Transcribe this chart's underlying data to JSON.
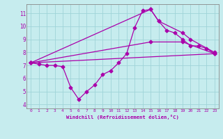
{
  "xlabel": "Windchill (Refroidissement éolien,°C)",
  "ylabel": "",
  "xlim": [
    -0.5,
    23.5
  ],
  "ylim": [
    3.7,
    11.7
  ],
  "xticks": [
    0,
    1,
    2,
    3,
    4,
    5,
    6,
    7,
    8,
    9,
    10,
    11,
    12,
    13,
    14,
    15,
    16,
    17,
    18,
    19,
    20,
    21,
    22,
    23
  ],
  "yticks": [
    4,
    5,
    6,
    7,
    8,
    9,
    10,
    11
  ],
  "bg_color": "#c6ecee",
  "grid_color": "#9fd4d8",
  "line_color": "#aa00aa",
  "line1_x": [
    0,
    1,
    2,
    3,
    4,
    5,
    6,
    7,
    8,
    9,
    10,
    11,
    12,
    13,
    14,
    15,
    16,
    17,
    18,
    19,
    20,
    21,
    22,
    23
  ],
  "line1_y": [
    7.2,
    7.1,
    7.0,
    7.0,
    6.9,
    5.3,
    4.4,
    5.0,
    5.5,
    6.3,
    6.6,
    7.2,
    7.9,
    9.9,
    11.2,
    11.3,
    10.4,
    9.7,
    9.5,
    9.0,
    8.5,
    8.5,
    8.3,
    7.9
  ],
  "line2_x": [
    0,
    23
  ],
  "line2_y": [
    7.2,
    7.9
  ],
  "line3_x": [
    0,
    15,
    16,
    19,
    20,
    23
  ],
  "line3_y": [
    7.2,
    11.3,
    10.4,
    9.5,
    9.0,
    8.0
  ],
  "line4_x": [
    0,
    15,
    19,
    23
  ],
  "line4_y": [
    7.2,
    8.8,
    8.8,
    7.9
  ],
  "marker": "D",
  "markersize": 2.5,
  "linewidth": 0.9
}
